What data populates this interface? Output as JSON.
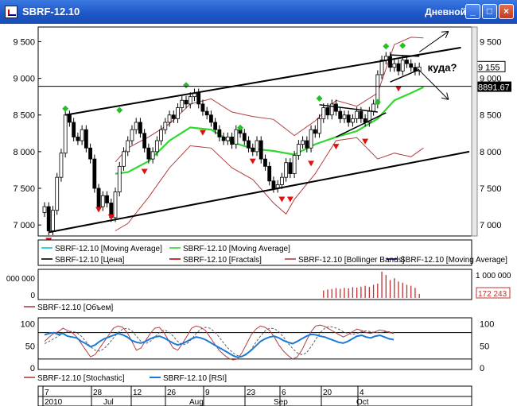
{
  "window": {
    "title": "SBRF-12.10",
    "period": "Дневной",
    "minimize_glyph": "_",
    "restore_glyph": "□",
    "close_glyph": "×"
  },
  "annotation": {
    "label": "куда?"
  },
  "legend_main": [
    {
      "label": "SBRF-12.10 [Moving Average]",
      "color": "#00c8e8"
    },
    {
      "label": "SBRF-12.10 [Moving Average]",
      "color": "#2ed82e"
    },
    {
      "label": "SBRF-12.10 [Цена]",
      "color": "#000000"
    },
    {
      "label": "SBRF-12.10 [Fractals]",
      "color": "#c00000"
    },
    {
      "label": "SBRF-12.10 [Bollinger Bands]",
      "color": "#b04040"
    },
    {
      "label": "SBRF-12.10 [Moving Average]",
      "color": "#000060"
    }
  ],
  "legend_volume": [
    {
      "label": "SBRF-12.10 [Объем]",
      "color": "#b04040"
    }
  ],
  "legend_osc": [
    {
      "label": "SBRF-12.10 [Stochastic]",
      "color": "#b04040"
    },
    {
      "label": "SBRF-12.10 [RSI]",
      "color": "#1a7ad8"
    }
  ],
  "chart_data": [
    {
      "type": "candlestick",
      "ylim": [
        6850,
        9700
      ],
      "y_ticks": [
        7000,
        7500,
        8000,
        8500,
        9000,
        9500
      ],
      "y_tick_labels": [
        "7 000",
        "7 500",
        "8 000",
        "8 500",
        "9 000",
        "9 500"
      ],
      "last_price": 9155,
      "last_price_label": "9 155",
      "level": 8891.67,
      "level_label": "8891.67",
      "close": [
        7250,
        6920,
        7200,
        7650,
        7980,
        8500,
        8400,
        8200,
        8150,
        8300,
        8050,
        7900,
        7500,
        7250,
        7400,
        7300,
        7100,
        7450,
        7800,
        8000,
        8150,
        8300,
        8400,
        8250,
        8050,
        7900,
        8000,
        8150,
        8300,
        8400,
        8500,
        8450,
        8600,
        8700,
        8650,
        8750,
        8800,
        8650,
        8550,
        8500,
        8400,
        8300,
        8200,
        8150,
        8200,
        8100,
        8300,
        8250,
        8150,
        8050,
        8000,
        8150,
        7900,
        7800,
        7600,
        7500,
        7550,
        7650,
        7850,
        7700,
        7950,
        8100,
        8150,
        8050,
        8300,
        8250,
        8450,
        8600,
        8500,
        8650,
        8550,
        8450,
        8500,
        8400,
        8450,
        8550,
        8450,
        8400,
        8550,
        8650,
        9050,
        9250,
        9300,
        9150,
        9200,
        9100,
        9250,
        9200,
        9150,
        9100,
        9155
      ],
      "fractals_up": [
        [
          5,
          8500
        ],
        [
          18,
          8480
        ],
        [
          34,
          8820
        ],
        [
          47,
          8240
        ],
        [
          66,
          8640
        ],
        [
          80,
          8590
        ],
        [
          82,
          9350
        ],
        [
          86,
          9360
        ]
      ],
      "fractals_down": [
        [
          1,
          6880
        ],
        [
          16,
          7200
        ],
        [
          13,
          7300
        ],
        [
          24,
          7820
        ],
        [
          38,
          8350
        ],
        [
          50,
          7960
        ],
        [
          57,
          7440
        ],
        [
          59,
          7440
        ],
        [
          64,
          7930
        ],
        [
          70,
          8160
        ],
        [
          77,
          8230
        ],
        [
          85,
          8950
        ]
      ],
      "bollinger_upper": [
        [
          17,
          7860
        ],
        [
          20,
          8050
        ],
        [
          25,
          8200
        ],
        [
          30,
          8380
        ],
        [
          35,
          8650
        ],
        [
          40,
          8720
        ],
        [
          45,
          8540
        ],
        [
          50,
          8480
        ],
        [
          55,
          8440
        ],
        [
          60,
          8220
        ],
        [
          65,
          8420
        ],
        [
          70,
          8700
        ],
        [
          75,
          8620
        ],
        [
          80,
          8800
        ],
        [
          84,
          9460
        ],
        [
          88,
          9560
        ],
        [
          91,
          9550
        ]
      ],
      "bollinger_lower": [
        [
          17,
          6920
        ],
        [
          20,
          7020
        ],
        [
          25,
          7380
        ],
        [
          30,
          7780
        ],
        [
          35,
          8080
        ],
        [
          40,
          8050
        ],
        [
          45,
          7780
        ],
        [
          50,
          7620
        ],
        [
          55,
          7300
        ],
        [
          58,
          7150
        ],
        [
          60,
          7350
        ],
        [
          65,
          7700
        ],
        [
          70,
          8150
        ],
        [
          75,
          8190
        ],
        [
          80,
          7900
        ],
        [
          84,
          7980
        ],
        [
          88,
          7930
        ],
        [
          91,
          8050
        ]
      ],
      "ma_green": [
        [
          17,
          7700
        ],
        [
          20,
          7720
        ],
        [
          25,
          7870
        ],
        [
          30,
          8150
        ],
        [
          35,
          8330
        ],
        [
          40,
          8300
        ],
        [
          45,
          8130
        ],
        [
          50,
          8040
        ],
        [
          55,
          8010
        ],
        [
          60,
          7960
        ],
        [
          65,
          8100
        ],
        [
          70,
          8200
        ],
        [
          75,
          8280
        ],
        [
          80,
          8450
        ],
        [
          84,
          8700
        ],
        [
          88,
          8800
        ],
        [
          91,
          8880
        ]
      ],
      "trend_lines": [
        [
          [
            1,
            6900
          ],
          [
            102,
            8000
          ]
        ],
        [
          [
            5,
            8500
          ],
          [
            100,
            9420
          ]
        ],
        [
          [
            66,
            8640
          ],
          [
            80,
            8540
          ]
        ],
        [
          [
            70,
            8200
          ],
          [
            82,
            8530
          ]
        ],
        [
          [
            83,
            9320
          ],
          [
            90,
            9300
          ]
        ],
        [
          [
            83,
            8950
          ],
          [
            90,
            9120
          ]
        ]
      ],
      "arrows": [
        [
          [
            90,
            9360
          ],
          [
            97,
            9640
          ]
        ],
        [
          [
            90,
            9110
          ],
          [
            97,
            8710
          ]
        ]
      ]
    },
    {
      "type": "bar",
      "name": "volume",
      "y_tick_labels": [
        "000 000",
        "0"
      ],
      "y_tick_labels_right": [
        "1 000 000",
        "0"
      ],
      "last_value_label": "172 243",
      "values": [
        0,
        0,
        0,
        0,
        0,
        0,
        0,
        0,
        0,
        0,
        0,
        0,
        0,
        0,
        0,
        0,
        0,
        0,
        0,
        0,
        0,
        0,
        0,
        0,
        0,
        0,
        0,
        0,
        0,
        0,
        0,
        0,
        0,
        0,
        0,
        0,
        0,
        0,
        0,
        0,
        0,
        0,
        0,
        0,
        0,
        0,
        0,
        0,
        0,
        0,
        0,
        0,
        0,
        0,
        0,
        0,
        0,
        0,
        0,
        0,
        0,
        0,
        0,
        0,
        0,
        0,
        0,
        320000,
        360000,
        380000,
        420000,
        390000,
        430000,
        410000,
        460000,
        440000,
        480000,
        520000,
        470000,
        560000,
        610000,
        1120000,
        980000,
        760000,
        840000,
        700000,
        650000,
        560000,
        520000,
        430000,
        172243
      ],
      "ylim": [
        0,
        1150000
      ]
    },
    {
      "type": "line",
      "name": "oscillators",
      "ylim": [
        0,
        110
      ],
      "y_ticks": [
        0,
        50,
        100
      ],
      "y_tick_labels": [
        "0",
        "50",
        "100"
      ],
      "levels": [
        20,
        80
      ],
      "stochastic": [
        60,
        70,
        78,
        82,
        90,
        85,
        80,
        70,
        55,
        40,
        25,
        30,
        45,
        60,
        75,
        90,
        95,
        92,
        80,
        60,
        40,
        45,
        62,
        78,
        90,
        92,
        80,
        62,
        45,
        40,
        55,
        72,
        90,
        95,
        92,
        85,
        70,
        55,
        40,
        30,
        22,
        18,
        20,
        35,
        55,
        75,
        88,
        95,
        92,
        85,
        70,
        52,
        38,
        28,
        20,
        25,
        40,
        62,
        82,
        95,
        97,
        94,
        88,
        82,
        76,
        70,
        75,
        82,
        88,
        85,
        80,
        78,
        82,
        86,
        84,
        80,
        78
      ],
      "stochastic_slow": [
        55,
        60,
        66,
        72,
        78,
        82,
        83,
        80,
        72,
        60,
        48,
        40,
        38,
        44,
        55,
        68,
        80,
        88,
        90,
        84,
        72,
        60,
        55,
        60,
        70,
        80,
        86,
        82,
        72,
        60,
        52,
        55,
        65,
        78,
        88,
        92,
        90,
        82,
        70,
        56,
        44,
        34,
        28,
        26,
        30,
        42,
        58,
        72,
        84,
        90,
        89,
        82,
        70,
        56,
        44,
        34,
        30,
        34,
        48,
        64,
        80,
        90,
        94,
        92,
        88,
        82,
        78,
        76,
        78,
        82,
        84,
        82,
        80,
        80,
        82,
        82,
        80
      ],
      "rsi": [
        75,
        78,
        80,
        76,
        78,
        72,
        70,
        68,
        60,
        55,
        48,
        52,
        60,
        66,
        70,
        74,
        78,
        75,
        70,
        62,
        58,
        56,
        60,
        66,
        70,
        72,
        68,
        62,
        56,
        52,
        55,
        60,
        66,
        70,
        68,
        64,
        58,
        52,
        46,
        40,
        34,
        28,
        24,
        26,
        32,
        40,
        50,
        60,
        66,
        70,
        72,
        68,
        62,
        58,
        55,
        60,
        66,
        72,
        76,
        75,
        72,
        70,
        66,
        62,
        58,
        56,
        60,
        66,
        72,
        74,
        70,
        68,
        72,
        74,
        70,
        66,
        64
      ]
    },
    {
      "type": "time_axis",
      "labels_top": [
        "7",
        "28",
        "12",
        "26",
        "9",
        "23",
        "6",
        "20",
        "4"
      ],
      "labels_bottom": [
        "2010",
        "Jul",
        "Aug",
        "Sep",
        "Oct"
      ]
    }
  ]
}
